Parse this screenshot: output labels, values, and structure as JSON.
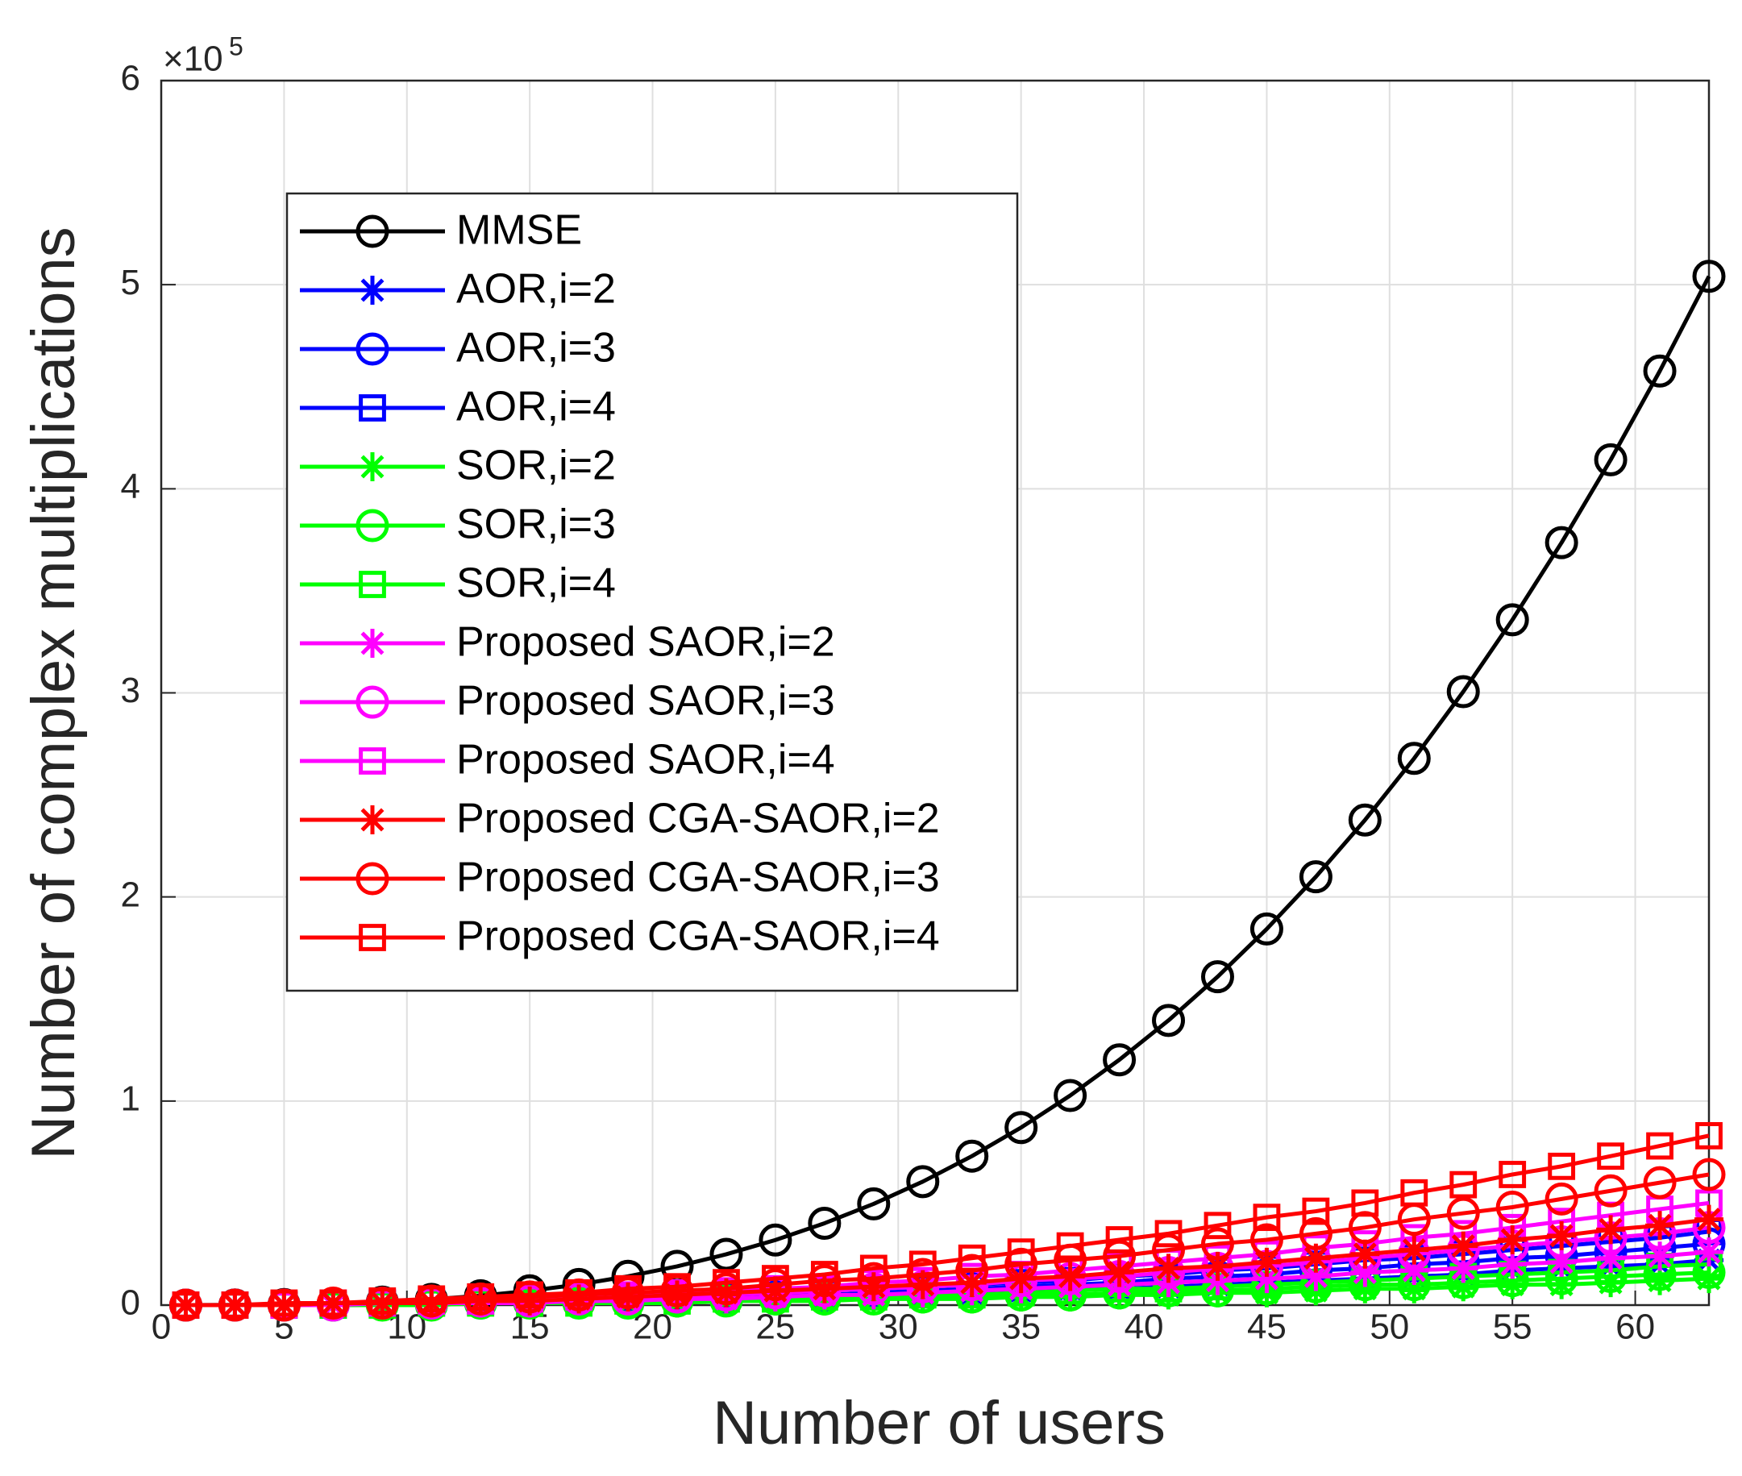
{
  "chart_data": {
    "type": "line",
    "x_label": "Number of users",
    "y_label": "Number of complex multiplications",
    "y_multiplier": {
      "base": "×10",
      "exponent": "5"
    },
    "x": [
      1,
      3,
      5,
      7,
      9,
      11,
      13,
      15,
      17,
      19,
      21,
      23,
      25,
      27,
      29,
      31,
      33,
      35,
      37,
      39,
      41,
      43,
      45,
      47,
      49,
      51,
      53,
      55,
      57,
      59,
      61,
      63
    ],
    "xlim": [
      0,
      63
    ],
    "xticks": [
      0,
      5,
      10,
      15,
      20,
      25,
      30,
      35,
      40,
      45,
      50,
      55,
      60
    ],
    "ylim": [
      0,
      6
    ],
    "yticks": [
      0,
      1,
      2,
      3,
      4,
      5,
      6
    ],
    "grid": true,
    "legend": "upper left",
    "series": [
      {
        "name": "MMSE",
        "color": "#000000",
        "marker": "circle",
        "values": [
          0,
          0.001,
          0.003,
          0.007,
          0.015,
          0.028,
          0.046,
          0.07,
          0.101,
          0.141,
          0.19,
          0.249,
          0.319,
          0.401,
          0.496,
          0.605,
          0.73,
          0.87,
          1.027,
          1.202,
          1.395,
          1.609,
          1.843,
          2.099,
          2.377,
          2.679,
          3.006,
          3.358,
          3.736,
          4.142,
          4.577,
          5.041
        ]
      },
      {
        "name": "AOR,i=2",
        "color": "#0000ff",
        "marker": "star",
        "values": [
          0,
          0,
          0,
          0,
          0,
          0.01,
          0.01,
          0.01,
          0.02,
          0.02,
          0.02,
          0.03,
          0.03,
          0.04,
          0.05,
          0.05,
          0.06,
          0.07,
          0.08,
          0.08,
          0.09,
          0.1,
          0.11,
          0.12,
          0.13,
          0.14,
          0.15,
          0.17,
          0.18,
          0.19,
          0.2,
          0.22
        ]
      },
      {
        "name": "AOR,i=3",
        "color": "#0000ff",
        "marker": "circle",
        "values": [
          0,
          0,
          0,
          0,
          0.01,
          0.01,
          0.01,
          0.02,
          0.02,
          0.03,
          0.03,
          0.04,
          0.05,
          0.05,
          0.06,
          0.07,
          0.08,
          0.09,
          0.1,
          0.11,
          0.13,
          0.14,
          0.15,
          0.17,
          0.18,
          0.2,
          0.21,
          0.23,
          0.24,
          0.26,
          0.28,
          0.3
        ]
      },
      {
        "name": "AOR,i=4",
        "color": "#0000ff",
        "marker": "square",
        "values": [
          0,
          0,
          0,
          0,
          0.01,
          0.01,
          0.02,
          0.02,
          0.03,
          0.03,
          0.04,
          0.05,
          0.06,
          0.07,
          0.08,
          0.09,
          0.1,
          0.11,
          0.12,
          0.14,
          0.15,
          0.17,
          0.18,
          0.2,
          0.22,
          0.23,
          0.25,
          0.27,
          0.29,
          0.31,
          0.33,
          0.36
        ]
      },
      {
        "name": "SOR,i=2",
        "color": "#00ff00",
        "marker": "star",
        "values": [
          0,
          0,
          0,
          0,
          0,
          0,
          0.01,
          0.01,
          0.01,
          0.01,
          0.01,
          0.02,
          0.02,
          0.02,
          0.03,
          0.03,
          0.03,
          0.04,
          0.04,
          0.05,
          0.05,
          0.06,
          0.06,
          0.07,
          0.08,
          0.08,
          0.09,
          0.1,
          0.1,
          0.11,
          0.12,
          0.13
        ]
      },
      {
        "name": "SOR,i=3",
        "color": "#00ff00",
        "marker": "circle",
        "values": [
          0,
          0,
          0,
          0,
          0,
          0,
          0.01,
          0.01,
          0.01,
          0.01,
          0.02,
          0.02,
          0.03,
          0.03,
          0.03,
          0.04,
          0.04,
          0.05,
          0.05,
          0.06,
          0.07,
          0.07,
          0.08,
          0.09,
          0.1,
          0.1,
          0.11,
          0.12,
          0.13,
          0.14,
          0.15,
          0.16
        ]
      },
      {
        "name": "SOR,i=4",
        "color": "#00ff00",
        "marker": "square",
        "values": [
          0,
          0,
          0,
          0,
          0,
          0.01,
          0.01,
          0.01,
          0.01,
          0.02,
          0.02,
          0.03,
          0.03,
          0.04,
          0.04,
          0.05,
          0.05,
          0.06,
          0.07,
          0.08,
          0.08,
          0.09,
          0.1,
          0.11,
          0.12,
          0.13,
          0.14,
          0.15,
          0.16,
          0.17,
          0.19,
          0.2
        ]
      },
      {
        "name": "Proposed SAOR,i=2",
        "color": "#ff00ff",
        "marker": "star",
        "values": [
          0,
          0,
          0,
          0,
          0.01,
          0.01,
          0.01,
          0.01,
          0.02,
          0.02,
          0.03,
          0.03,
          0.04,
          0.05,
          0.05,
          0.06,
          0.07,
          0.08,
          0.09,
          0.1,
          0.11,
          0.12,
          0.13,
          0.14,
          0.16,
          0.17,
          0.18,
          0.2,
          0.21,
          0.23,
          0.24,
          0.26
        ]
      },
      {
        "name": "Proposed SAOR,i=3",
        "color": "#ff00ff",
        "marker": "circle",
        "values": [
          0,
          0,
          0,
          0,
          0.01,
          0.01,
          0.02,
          0.02,
          0.03,
          0.03,
          0.04,
          0.05,
          0.06,
          0.07,
          0.08,
          0.09,
          0.1,
          0.12,
          0.13,
          0.14,
          0.16,
          0.18,
          0.19,
          0.21,
          0.23,
          0.25,
          0.27,
          0.29,
          0.31,
          0.33,
          0.35,
          0.38
        ]
      },
      {
        "name": "Proposed SAOR,i=4",
        "color": "#ff00ff",
        "marker": "square",
        "values": [
          0,
          0,
          0,
          0.01,
          0.01,
          0.02,
          0.02,
          0.03,
          0.04,
          0.05,
          0.06,
          0.07,
          0.08,
          0.09,
          0.11,
          0.12,
          0.14,
          0.15,
          0.17,
          0.19,
          0.21,
          0.23,
          0.25,
          0.28,
          0.3,
          0.33,
          0.35,
          0.38,
          0.41,
          0.44,
          0.47,
          0.5
        ]
      },
      {
        "name": "Proposed CGA-SAOR,i=2",
        "color": "#ff0000",
        "marker": "star",
        "values": [
          0,
          0,
          0,
          0.01,
          0.01,
          0.01,
          0.02,
          0.02,
          0.03,
          0.04,
          0.05,
          0.06,
          0.07,
          0.08,
          0.09,
          0.1,
          0.11,
          0.13,
          0.14,
          0.16,
          0.18,
          0.19,
          0.21,
          0.23,
          0.25,
          0.27,
          0.29,
          0.32,
          0.34,
          0.37,
          0.39,
          0.42
        ]
      },
      {
        "name": "Proposed CGA-SAOR,i=3",
        "color": "#ff0000",
        "marker": "circle",
        "values": [
          0,
          0,
          0,
          0.01,
          0.01,
          0.02,
          0.03,
          0.04,
          0.05,
          0.06,
          0.07,
          0.08,
          0.1,
          0.12,
          0.13,
          0.15,
          0.17,
          0.2,
          0.22,
          0.24,
          0.27,
          0.3,
          0.32,
          0.35,
          0.38,
          0.42,
          0.45,
          0.48,
          0.52,
          0.56,
          0.6,
          0.64
        ]
      },
      {
        "name": "Proposed CGA-SAOR,i=4",
        "color": "#ff0000",
        "marker": "square",
        "values": [
          0,
          0,
          0.01,
          0.01,
          0.02,
          0.03,
          0.04,
          0.05,
          0.06,
          0.08,
          0.09,
          0.11,
          0.13,
          0.15,
          0.18,
          0.2,
          0.23,
          0.26,
          0.29,
          0.32,
          0.35,
          0.39,
          0.43,
          0.46,
          0.5,
          0.55,
          0.59,
          0.64,
          0.68,
          0.73,
          0.78,
          0.83
        ]
      }
    ]
  }
}
